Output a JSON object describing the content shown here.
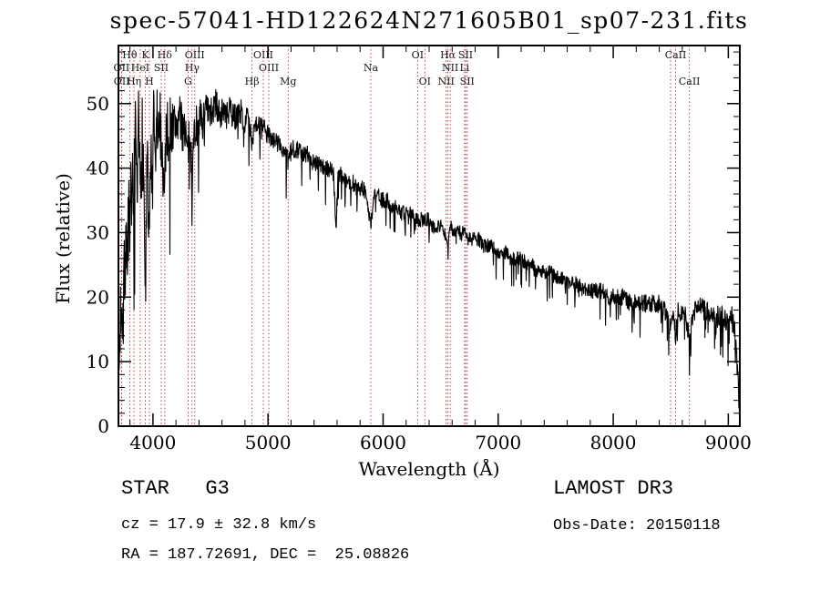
{
  "title": "spec-57041-HD122624N271605B01_sp07-231.fits",
  "chart_data": {
    "type": "line",
    "title": "spec-57041-HD122624N271605B01_sp07-231.fits",
    "xlabel": "Wavelength (Å)",
    "ylabel": "Flux (relative)",
    "xlim": [
      3700,
      9100
    ],
    "ylim": [
      0,
      59
    ],
    "xticks": [
      4000,
      5000,
      6000,
      7000,
      8000,
      9000
    ],
    "yticks": [
      0,
      10,
      20,
      30,
      40,
      50
    ],
    "grid": false,
    "line_color": "#000000",
    "marker_line_color": "#b03030",
    "spectrum": {
      "x": [
        3700,
        3710,
        3725,
        3740,
        3755,
        3770,
        3785,
        3800,
        3815,
        3830,
        3845,
        3860,
        3875,
        3890,
        3905,
        3920,
        3935,
        3950,
        3965,
        3980,
        3995,
        4005,
        4020,
        4035,
        4050,
        4065,
        4080,
        4100,
        4115,
        4130,
        4150,
        4175,
        4200,
        4225,
        4250,
        4275,
        4300,
        4320,
        4340,
        4360,
        4380,
        4400,
        4430,
        4460,
        4490,
        4520,
        4550,
        4580,
        4610,
        4640,
        4670,
        4700,
        4730,
        4760,
        4790,
        4820,
        4861,
        4880,
        4910,
        4940,
        4970,
        5000,
        5030,
        5060,
        5090,
        5120,
        5150,
        5175,
        5210,
        5240,
        5270,
        5300,
        5330,
        5360,
        5390,
        5420,
        5450,
        5480,
        5510,
        5540,
        5570,
        5590,
        5610,
        5640,
        5670,
        5700,
        5730,
        5760,
        5790,
        5820,
        5850,
        5893,
        5920,
        5950,
        5980,
        6010,
        6040,
        6070,
        6100,
        6130,
        6160,
        6190,
        6220,
        6250,
        6280,
        6310,
        6340,
        6370,
        6400,
        6430,
        6460,
        6490,
        6520,
        6563,
        6590,
        6620,
        6650,
        6680,
        6710,
        6740,
        6770,
        6800,
        6830,
        6860,
        6890,
        6920,
        6950,
        6980,
        7010,
        7040,
        7070,
        7100,
        7150,
        7200,
        7250,
        7300,
        7350,
        7400,
        7450,
        7500,
        7550,
        7600,
        7650,
        7700,
        7750,
        7800,
        7850,
        7900,
        7950,
        8000,
        8050,
        8100,
        8150,
        8200,
        8250,
        8300,
        8350,
        8400,
        8450,
        8498,
        8520,
        8542,
        8565,
        8600,
        8630,
        8662,
        8690,
        8720,
        8750,
        8780,
        8810,
        8840,
        8870,
        8900,
        8930,
        8960,
        9000,
        9030,
        9060,
        9080,
        9100
      ],
      "y": [
        3,
        12,
        22,
        18,
        30,
        24,
        34,
        26,
        40,
        30,
        44,
        32,
        45,
        36,
        46,
        38,
        20,
        42,
        24,
        44,
        34,
        47,
        40,
        48,
        44,
        47,
        42,
        36,
        47,
        45,
        47,
        46,
        47,
        48,
        46,
        47,
        42,
        45,
        39,
        46,
        47,
        48,
        47,
        49,
        48,
        49,
        50,
        48,
        49,
        48,
        49,
        48,
        48,
        49,
        47,
        48,
        44,
        47,
        47,
        46,
        46,
        45,
        45,
        44,
        44,
        43,
        42,
        41,
        43,
        43,
        43,
        42,
        42,
        42,
        41,
        41,
        41,
        40,
        40,
        40,
        39,
        30,
        39,
        39,
        38,
        38,
        38,
        37,
        37,
        37,
        36,
        31,
        36,
        36,
        35,
        35,
        35,
        34,
        34,
        34,
        33,
        33,
        33,
        33,
        32,
        32,
        32,
        32,
        32,
        31,
        31,
        31,
        31,
        28,
        31,
        30,
        30,
        30,
        30,
        29,
        29,
        29,
        29,
        28,
        28,
        28,
        28,
        27,
        27,
        27,
        27,
        26,
        26,
        26,
        25,
        25,
        24,
        24,
        24,
        23,
        23,
        22,
        22,
        22,
        21,
        21,
        21,
        21,
        20,
        20,
        20,
        20,
        19,
        19,
        19,
        19,
        19,
        19,
        18,
        15,
        18,
        14,
        18,
        17,
        17,
        13,
        17,
        18,
        19,
        18,
        18,
        17,
        17,
        17,
        17,
        17,
        16,
        17,
        14,
        8,
        2
      ]
    },
    "noise": {
      "x": [
        3700,
        3900,
        4000,
        4100,
        4300,
        4600,
        5000,
        5500,
        6000,
        6500,
        7000,
        7500,
        8000,
        8600,
        9000,
        9100
      ],
      "amp": [
        8,
        8,
        6,
        5,
        3.5,
        2.2,
        1.6,
        1.4,
        1.2,
        1.1,
        1.1,
        1.2,
        1.3,
        1.5,
        1.8,
        2
      ]
    },
    "marker_wavelengths": [
      3727,
      3729,
      3798,
      3835,
      3889,
      3934,
      3969,
      4072,
      4102,
      4305,
      4340,
      4363,
      4861,
      4959,
      5007,
      5175,
      5893,
      6300,
      6363,
      6548,
      6563,
      6583,
      6708,
      6717,
      6731,
      8498,
      8542,
      8662
    ],
    "line_labels": [
      {
        "label": "Hθ",
        "wavelength": 3798,
        "row": 0
      },
      {
        "label": "K",
        "wavelength": 3934,
        "row": 0
      },
      {
        "label": "Hδ",
        "wavelength": 4102,
        "row": 0
      },
      {
        "label": "OIII",
        "wavelength": 4363,
        "row": 0
      },
      {
        "label": "OIII",
        "wavelength": 4959,
        "row": 0
      },
      {
        "label": "OI",
        "wavelength": 6300,
        "row": 0
      },
      {
        "label": "Hα",
        "wavelength": 6563,
        "row": 0
      },
      {
        "label": "SII",
        "wavelength": 6717,
        "row": 0
      },
      {
        "label": "CaII",
        "wavelength": 8542,
        "row": 0
      },
      {
        "label": "OII",
        "wavelength": 3727,
        "row": 1
      },
      {
        "label": "HeI",
        "wavelength": 3889,
        "row": 1
      },
      {
        "label": "SII",
        "wavelength": 4072,
        "row": 1
      },
      {
        "label": "Hγ",
        "wavelength": 4340,
        "row": 1
      },
      {
        "label": "OIII",
        "wavelength": 5007,
        "row": 1
      },
      {
        "label": "Na",
        "wavelength": 5893,
        "row": 1
      },
      {
        "label": "NII",
        "wavelength": 6583,
        "row": 1
      },
      {
        "label": "Li",
        "wavelength": 6708,
        "row": 1
      },
      {
        "label": "OII",
        "wavelength": 3729,
        "row": 2
      },
      {
        "label": "Hη",
        "wavelength": 3835,
        "row": 2
      },
      {
        "label": "H",
        "wavelength": 3969,
        "row": 2
      },
      {
        "label": "G",
        "wavelength": 4305,
        "row": 2
      },
      {
        "label": "Hβ",
        "wavelength": 4861,
        "row": 2
      },
      {
        "label": "Mg",
        "wavelength": 5175,
        "row": 2
      },
      {
        "label": "OI",
        "wavelength": 6363,
        "row": 2
      },
      {
        "label": "NII",
        "wavelength": 6548,
        "row": 2
      },
      {
        "label": "SII",
        "wavelength": 6731,
        "row": 2
      },
      {
        "label": "CaII",
        "wavelength": 8662,
        "row": 2
      }
    ]
  },
  "footer": {
    "class_label": "STAR   G3",
    "survey": "LAMOST DR3",
    "cz": "cz = 17.9 ± 32.8 km/s",
    "obs_date": "Obs-Date: 20150118",
    "radec": "RA = 187.72691, DEC =  25.08826"
  }
}
